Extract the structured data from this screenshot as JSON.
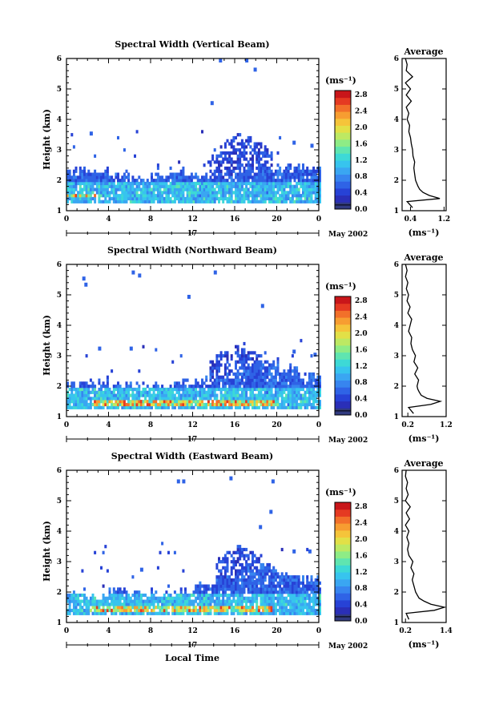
{
  "colors": {
    "scale": [
      "#313a80",
      "#2a2fb8",
      "#2742d6",
      "#2f63e6",
      "#3785ef",
      "#3aa6f2",
      "#37c4ee",
      "#3dd9d6",
      "#5fe5b0",
      "#8eec86",
      "#bde963",
      "#e2e047",
      "#f5c43a",
      "#f79d31",
      "#f2702a",
      "#e53a22",
      "#c9161a"
    ],
    "axis": "#000000",
    "profile": "#000000"
  },
  "shared": {
    "date": "May 2002",
    "day_marker": "17",
    "colorbar_unit": "(ms⁻¹)",
    "profile_unit": "(ms⁻¹)",
    "profile_title": "Average",
    "xlabel": "Local Time",
    "ylabel": "Height (km)"
  },
  "chart_data": [
    {
      "type": "heatmap",
      "title": "Spectral Width (Vertical Beam)",
      "x_range": [
        0,
        24
      ],
      "x_ticks": [
        "0",
        "4",
        "8",
        "12",
        "16",
        "20",
        "0"
      ],
      "y_range": [
        1,
        6
      ],
      "y_ticks": [
        "1",
        "2",
        "3",
        "4",
        "5",
        "6"
      ],
      "colorbar": {
        "range": [
          0,
          2.9
        ],
        "ticks": [
          "0.0",
          "0.4",
          "0.8",
          "1.2",
          "1.6",
          "2.0",
          "2.4",
          "2.8"
        ]
      },
      "features": {
        "low_layer_top_km": [
          2.25,
          2.3,
          2.2,
          2.0,
          2.1,
          2.2,
          2.1,
          2.15,
          2.3,
          2.4,
          2.35,
          2.4
        ],
        "strong_band_km": [
          1.38,
          1.55
        ],
        "strong_band_hours": [
          0,
          3.3
        ],
        "plume_hours": [
          13.5,
          19.5
        ],
        "plume_top_km": 3.55,
        "scattered_echoes": [
          [
            2.2,
            3.5
          ],
          [
            13.7,
            4.5
          ],
          [
            14.5,
            5.9
          ],
          [
            17.0,
            5.9
          ],
          [
            17.8,
            5.6
          ],
          [
            21.5,
            3.2
          ],
          [
            23.2,
            3.1
          ]
        ]
      },
      "profile": {
        "x_range": [
          0.2,
          1.25
        ],
        "x_ticks": [
          "0.4",
          "1.2"
        ],
        "height_km": [
          1.1,
          1.3,
          1.4,
          1.5,
          1.6,
          1.7,
          1.8,
          1.9,
          2.0,
          2.2,
          2.4,
          2.6,
          2.8,
          3.0,
          3.2,
          3.4,
          3.6,
          3.8,
          4.0,
          4.2,
          4.4,
          4.6,
          4.8,
          5.0,
          5.2,
          5.4,
          5.6,
          5.8,
          6.0
        ],
        "width": [
          0.45,
          0.32,
          1.1,
          0.85,
          0.7,
          0.62,
          0.58,
          0.55,
          0.52,
          0.5,
          0.48,
          0.5,
          0.46,
          0.45,
          0.42,
          0.4,
          0.36,
          0.38,
          0.32,
          0.36,
          0.3,
          0.42,
          0.3,
          0.4,
          0.28,
          0.45,
          0.3,
          0.32,
          0.28
        ]
      }
    },
    {
      "type": "heatmap",
      "title": "Spectral Width (Northward Beam)",
      "x_range": [
        0,
        24
      ],
      "x_ticks": [
        "0",
        "4",
        "8",
        "12",
        "16",
        "20",
        "0"
      ],
      "y_range": [
        1,
        6
      ],
      "y_ticks": [
        "1",
        "2",
        "3",
        "4",
        "5",
        "6"
      ],
      "colorbar": {
        "range": [
          0,
          2.9
        ],
        "ticks": [
          "0.0",
          "0.4",
          "0.8",
          "1.2",
          "1.6",
          "2.0",
          "2.4",
          "2.8"
        ]
      },
      "features": {
        "low_layer_top_km": [
          2.0,
          2.05,
          2.0,
          1.95,
          2.0,
          2.1,
          2.15,
          2.3,
          2.6,
          2.7,
          2.5,
          2.3
        ],
        "strong_band_km": [
          1.35,
          1.5
        ],
        "strong_band_hours": [
          2.5,
          20
        ],
        "plume_hours": [
          13.5,
          18.5
        ],
        "plume_top_km": 3.3,
        "scattered_echoes": [
          [
            1.5,
            5.5
          ],
          [
            1.7,
            5.3
          ],
          [
            6.2,
            5.7
          ],
          [
            6.8,
            5.6
          ],
          [
            14.0,
            5.7
          ],
          [
            11.5,
            4.9
          ],
          [
            18.5,
            4.6
          ],
          [
            3.0,
            3.2
          ],
          [
            6.0,
            3.2
          ],
          [
            21.5,
            3.1
          ],
          [
            23.5,
            3.0
          ]
        ]
      },
      "profile": {
        "x_range": [
          0.05,
          1.2
        ],
        "x_ticks": [
          "0.2",
          "1.2"
        ],
        "height_km": [
          1.1,
          1.3,
          1.4,
          1.5,
          1.6,
          1.7,
          1.8,
          1.9,
          2.0,
          2.2,
          2.4,
          2.6,
          2.8,
          3.0,
          3.2,
          3.4,
          3.6,
          3.8,
          4.0,
          4.2,
          4.4,
          4.6,
          4.8,
          5.0,
          5.2,
          5.4,
          5.6,
          5.8,
          6.0
        ],
        "width": [
          0.35,
          0.22,
          0.8,
          1.05,
          0.7,
          0.55,
          0.5,
          0.46,
          0.44,
          0.48,
          0.38,
          0.46,
          0.36,
          0.4,
          0.32,
          0.28,
          0.3,
          0.22,
          0.26,
          0.3,
          0.2,
          0.26,
          0.18,
          0.22,
          0.16,
          0.2,
          0.14,
          0.18,
          0.14
        ]
      }
    },
    {
      "type": "heatmap",
      "title": "Spectral Width (Eastward Beam)",
      "x_range": [
        0,
        24
      ],
      "x_ticks": [
        "0",
        "4",
        "8",
        "12",
        "16",
        "20",
        "0"
      ],
      "y_range": [
        1,
        6
      ],
      "y_ticks": [
        "1",
        "2",
        "3",
        "4",
        "5",
        "6"
      ],
      "colorbar": {
        "range": [
          0,
          2.9
        ],
        "ticks": [
          "0.0",
          "0.4",
          "0.8",
          "1.2",
          "1.6",
          "2.0",
          "2.4",
          "2.8"
        ]
      },
      "features": {
        "low_layer_top_km": [
          1.85,
          1.8,
          2.0,
          1.9,
          1.95,
          2.0,
          2.2,
          2.4,
          2.7,
          2.8,
          2.6,
          2.4
        ],
        "strong_band_km": [
          1.35,
          1.55
        ],
        "strong_band_hours": [
          2.0,
          19.5
        ],
        "plume_hours": [
          14,
          18.5
        ],
        "plume_top_km": 3.5,
        "scattered_echoes": [
          [
            10.5,
            5.6
          ],
          [
            11.0,
            5.6
          ],
          [
            15.5,
            5.7
          ],
          [
            19.5,
            5.6
          ],
          [
            19.3,
            4.6
          ],
          [
            7.0,
            2.7
          ],
          [
            17.8,
            2.3
          ],
          [
            21.5,
            3.3
          ],
          [
            23.0,
            3.3
          ],
          [
            18.3,
            4.1
          ]
        ]
      },
      "profile": {
        "x_range": [
          0.1,
          1.4
        ],
        "x_ticks": [
          "0.2",
          "1.4"
        ],
        "height_km": [
          1.1,
          1.3,
          1.4,
          1.5,
          1.6,
          1.7,
          1.8,
          1.9,
          2.0,
          2.2,
          2.4,
          2.6,
          2.8,
          3.0,
          3.2,
          3.4,
          3.6,
          3.8,
          4.0,
          4.2,
          4.4,
          4.6,
          4.8,
          5.0,
          5.2,
          5.4,
          5.6,
          5.8,
          6.0
        ],
        "width": [
          0.3,
          0.22,
          1.05,
          1.35,
          0.95,
          0.75,
          0.6,
          0.55,
          0.5,
          0.45,
          0.4,
          0.45,
          0.36,
          0.42,
          0.3,
          0.26,
          0.3,
          0.24,
          0.3,
          0.2,
          0.32,
          0.22,
          0.34,
          0.2,
          0.28,
          0.22,
          0.26,
          0.2,
          0.22
        ]
      }
    }
  ]
}
